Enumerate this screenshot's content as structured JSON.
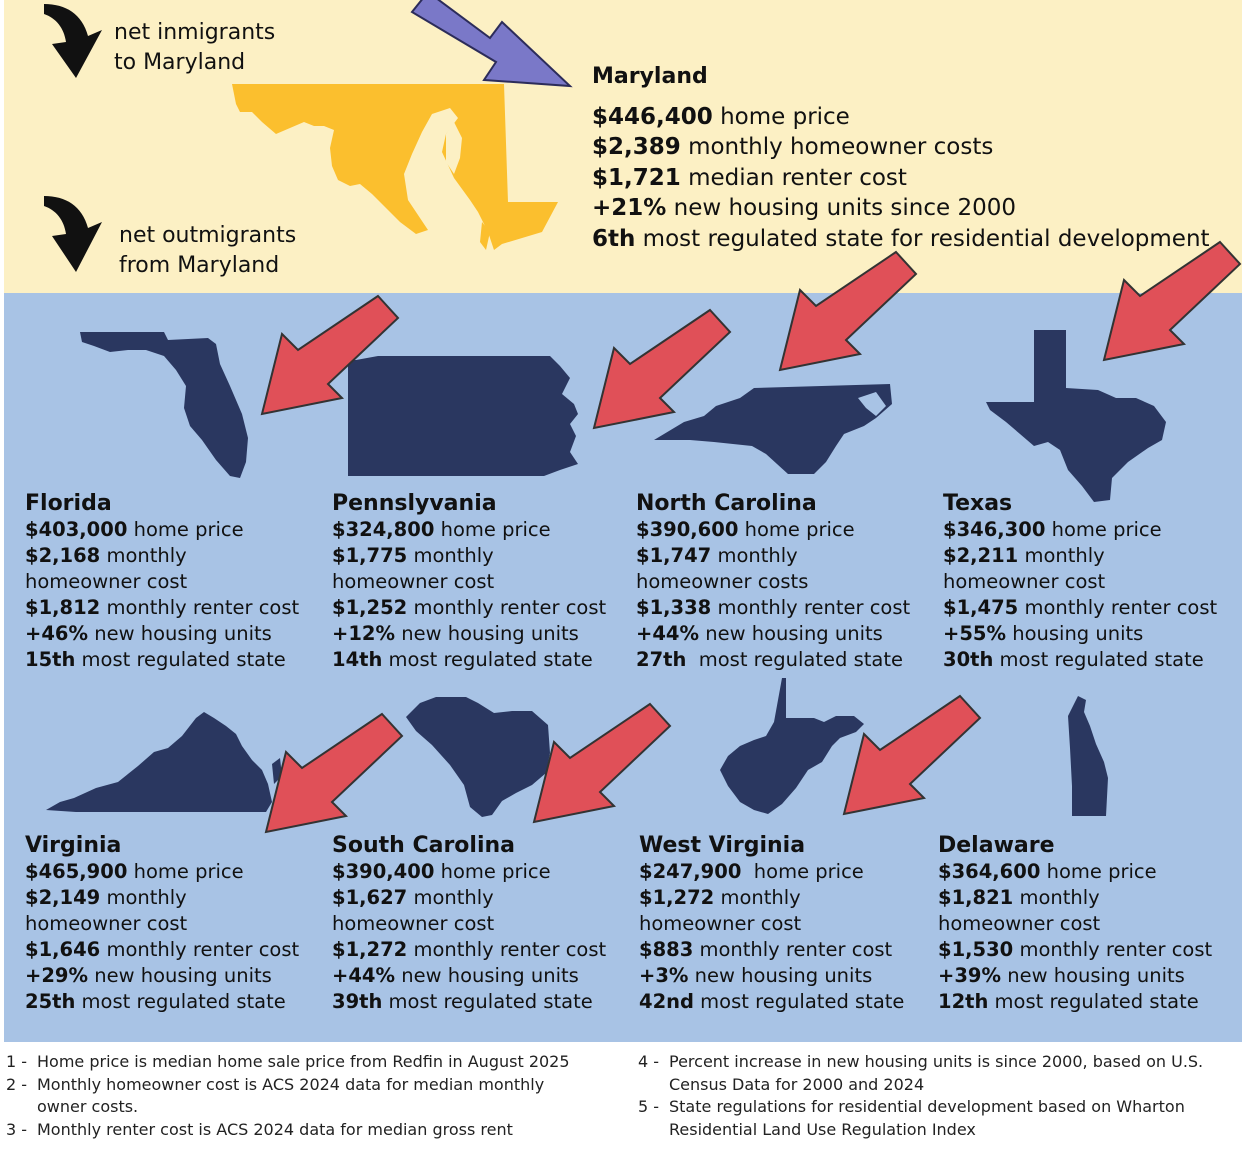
{
  "legend": {
    "inmigrants": [
      "net inmigrants",
      "to Maryland"
    ],
    "outmigrants": [
      "net outmigrants",
      "from Maryland"
    ]
  },
  "maryland": {
    "name": "Maryland",
    "rows": [
      {
        "bold": "$446,400",
        "text": " home price"
      },
      {
        "bold": "$2,389",
        "text": " monthly homeowner costs"
      },
      {
        "bold": "$1,721",
        "text": " median renter cost"
      },
      {
        "bold": "+21%",
        "text": " new housing units since 2000"
      },
      {
        "bold": "6th",
        "text": " most regulated state for residential development"
      }
    ]
  },
  "states": [
    {
      "name": "Florida",
      "home": "$403,000",
      "home_t": " home price",
      "owner": "$2,168",
      "owner_t": " monthly",
      "owner_t2": "homeowner cost",
      "renter": "$1,812",
      "renter_t": " monthly renter cost",
      "units": "+46%",
      "units_t": " new housing units",
      "reg": "15th",
      "reg_t": " most regulated state"
    },
    {
      "name": "Pennslyvania",
      "home": "$324,800",
      "home_t": " home price",
      "owner": "$1,775",
      "owner_t": " monthly",
      "owner_t2": "homeowner cost",
      "renter": "$1,252",
      "renter_t": " monthly renter cost",
      "units": "+12%",
      "units_t": " new housing units",
      "reg": "14th",
      "reg_t": " most regulated state"
    },
    {
      "name": "North Carolina",
      "home": "$390,600",
      "home_t": " home price",
      "owner": "$1,747",
      "owner_t": " monthly",
      "owner_t2": "homeowner costs",
      "renter": "$1,338",
      "renter_t": " monthly renter cost",
      "units": "+44%",
      "units_t": " new housing units",
      "reg": "27th",
      "reg_t": "  most regulated state"
    },
    {
      "name": "Texas",
      "home": "$346,300",
      "home_t": " home price",
      "owner": "$2,211",
      "owner_t": " monthly",
      "owner_t2": "homeowner cost",
      "renter": "$1,475",
      "renter_t": " monthly renter cost",
      "units": "+55%",
      "units_t": " housing units",
      "reg": "30th",
      "reg_t": " most regulated state"
    },
    {
      "name": "Virginia",
      "home": "$465,900",
      "home_t": " home price",
      "owner": "$2,149",
      "owner_t": " monthly",
      "owner_t2": "homeowner cost",
      "renter": "$1,646",
      "renter_t": " monthly renter cost",
      "units": "+29%",
      "units_t": " new housing units",
      "reg": "25th",
      "reg_t": " most regulated state"
    },
    {
      "name": "South Carolina",
      "home": "$390,400",
      "home_t": " home price",
      "owner": "$1,627",
      "owner_t": " monthly",
      "owner_t2": "homeowner cost",
      "renter": "$1,272",
      "renter_t": " monthly renter cost",
      "units": "+44%",
      "units_t": " new housing units",
      "reg": "39th",
      "reg_t": " most regulated state"
    },
    {
      "name": "West Virginia",
      "home": "$247,900",
      "home_t": "  home price",
      "owner": "$1,272",
      "owner_t": " monthly",
      "owner_t2": "homeowner cost",
      "renter": "$883",
      "renter_t": " monthly renter cost",
      "units": "+3%",
      "units_t": " new housing units",
      "reg": "42nd",
      "reg_t": " most regulated state"
    },
    {
      "name": "Delaware",
      "home": "$364,600",
      "home_t": " home price",
      "owner": "$1,821",
      "owner_t": " monthly",
      "owner_t2": "homeowner cost",
      "renter": "$1,530",
      "renter_t": " monthly renter cost",
      "units": "+39%",
      "units_t": " new housing units",
      "reg": "12th",
      "reg_t": " most regulated state"
    }
  ],
  "footnotes": {
    "left": [
      {
        "num": "1 -",
        "lines": [
          "Home price is median home sale price from Redfin in August 2025"
        ]
      },
      {
        "num": "2 -",
        "lines": [
          "Monthly homeowner cost is ACS 2024 data for median monthly",
          "owner costs."
        ]
      },
      {
        "num": "3 -",
        "lines": [
          "Monthly renter cost is ACS 2024 data for median gross rent"
        ]
      }
    ],
    "right": [
      {
        "num": "4 -",
        "lines": [
          "Percent increase in new housing units is since 2000, based on U.S.",
          "Census Data for 2000 and 2024"
        ]
      },
      {
        "num": "5 -",
        "lines": [
          "State regulations for residential development based on Wharton",
          "Residential Land Use Regulation Index"
        ]
      }
    ]
  },
  "colors": {
    "top_bg": "#fcf0c4",
    "mid_bg": "#a8c3e5",
    "maryland_fill": "#fbbf2e",
    "state_fill": "#2a3760",
    "outmigrant_arrow": "#e05058",
    "inmigrant_arrow": "#7a78c8"
  }
}
